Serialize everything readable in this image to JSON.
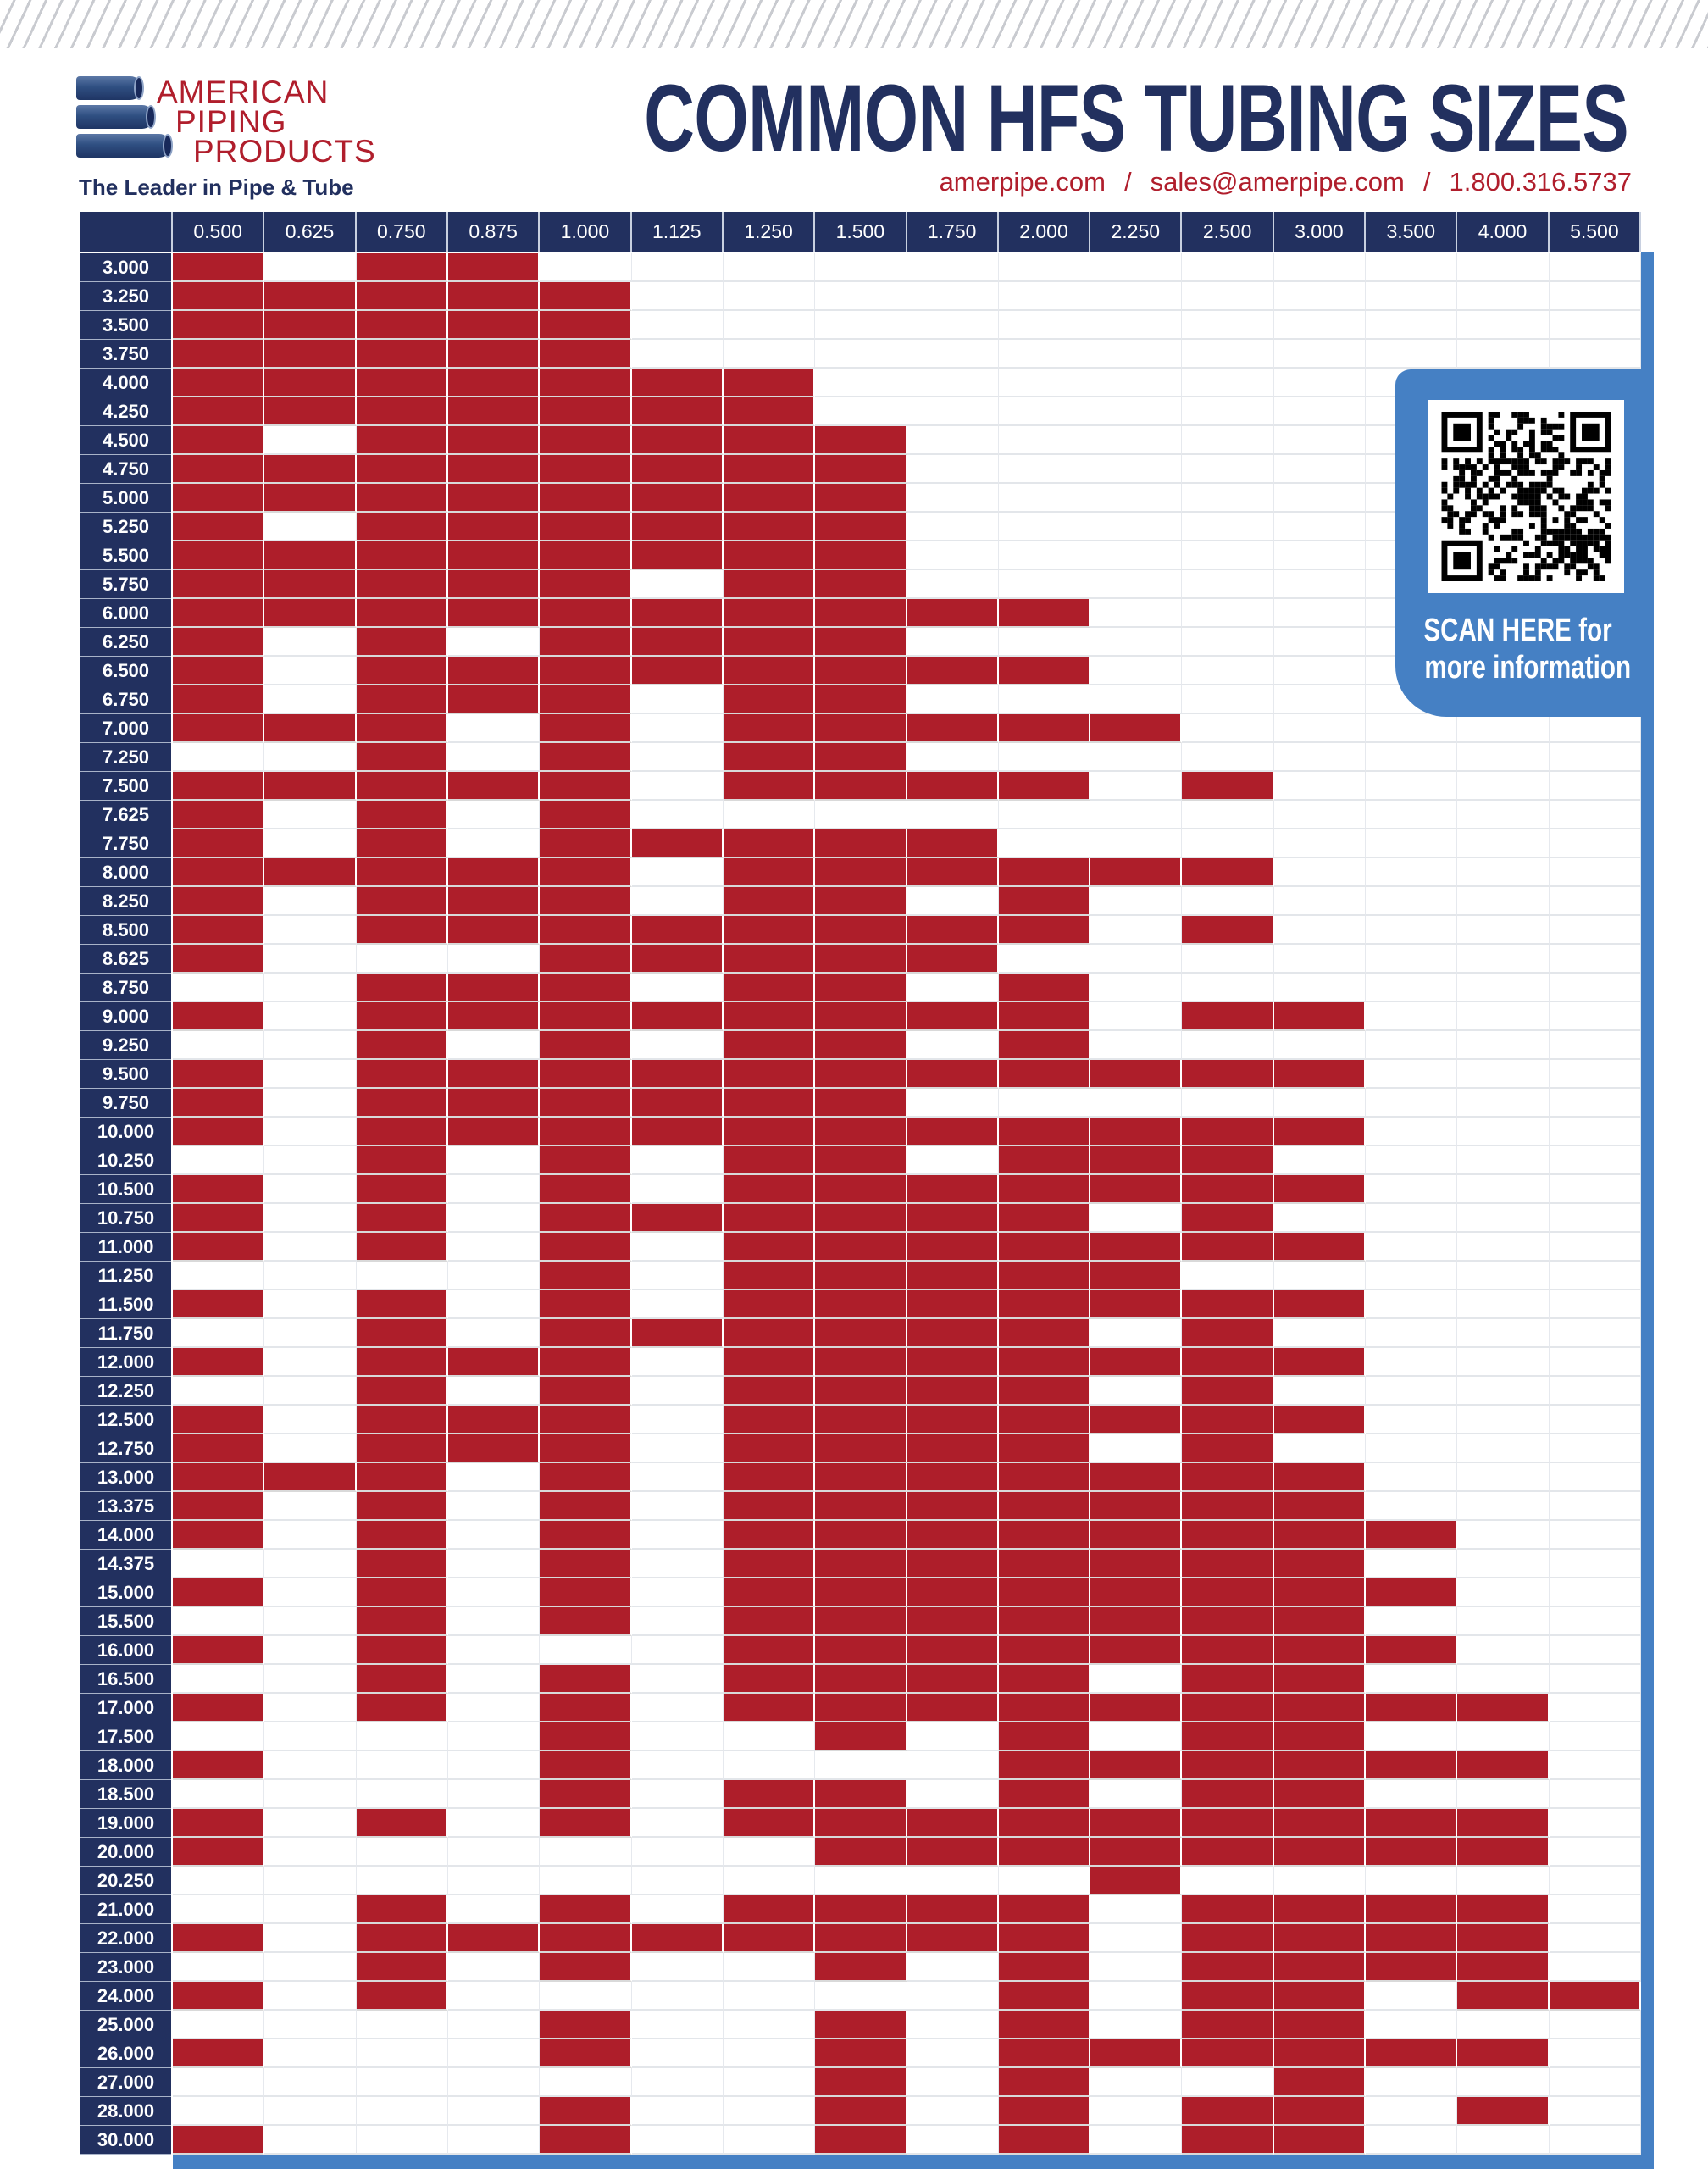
{
  "brand": {
    "logo_lines": [
      "AMERICAN",
      "PIPING",
      "PRODUCTS"
    ],
    "tagline": "The Leader in Pipe & Tube"
  },
  "header": {
    "title": "COMMON HFS TUBING SIZES",
    "website": "amerpipe.com",
    "separator": "/",
    "email": "sales@amerpipe.com",
    "phone": "1.800.316.5737"
  },
  "qr": {
    "icon": "qr-code-icon",
    "line1": "SCAN HERE for",
    "line2": "more information"
  },
  "colors": {
    "navy": "#22305f",
    "red": "#ae1e2a",
    "blue": "#4580c4"
  },
  "table": {
    "columns": [
      "0.500",
      "0.625",
      "0.750",
      "0.875",
      "1.000",
      "1.125",
      "1.250",
      "1.500",
      "1.750",
      "2.000",
      "2.250",
      "2.500",
      "3.000",
      "3.500",
      "4.000",
      "5.500"
    ],
    "rows": [
      {
        "size": "3.000",
        "avail": "1011000000000000"
      },
      {
        "size": "3.250",
        "avail": "1111100000000000"
      },
      {
        "size": "3.500",
        "avail": "1111100000000000"
      },
      {
        "size": "3.750",
        "avail": "1111100000000000"
      },
      {
        "size": "4.000",
        "avail": "1111111000000000"
      },
      {
        "size": "4.250",
        "avail": "1111111000000000"
      },
      {
        "size": "4.500",
        "avail": "1011111100000000"
      },
      {
        "size": "4.750",
        "avail": "1111111100000000"
      },
      {
        "size": "5.000",
        "avail": "1111111100000000"
      },
      {
        "size": "5.250",
        "avail": "1011111100000000"
      },
      {
        "size": "5.500",
        "avail": "1111111100000000"
      },
      {
        "size": "5.750",
        "avail": "1111101100000000"
      },
      {
        "size": "6.000",
        "avail": "1111111111000000"
      },
      {
        "size": "6.250",
        "avail": "1010111100000000"
      },
      {
        "size": "6.500",
        "avail": "1011111111000000"
      },
      {
        "size": "6.750",
        "avail": "1011101100000000"
      },
      {
        "size": "7.000",
        "avail": "1110101111100000"
      },
      {
        "size": "7.250",
        "avail": "0010101100000000"
      },
      {
        "size": "7.500",
        "avail": "1111101111010000"
      },
      {
        "size": "7.625",
        "avail": "1010100000000000"
      },
      {
        "size": "7.750",
        "avail": "1010111110000000"
      },
      {
        "size": "8.000",
        "avail": "1111101111110000"
      },
      {
        "size": "8.250",
        "avail": "1011101101000000"
      },
      {
        "size": "8.500",
        "avail": "1011111111010000"
      },
      {
        "size": "8.625",
        "avail": "1000111110000000"
      },
      {
        "size": "8.750",
        "avail": "0011101101000000"
      },
      {
        "size": "9.000",
        "avail": "1011111111011000"
      },
      {
        "size": "9.250",
        "avail": "0010101101000000"
      },
      {
        "size": "9.500",
        "avail": "1011111111111000"
      },
      {
        "size": "9.750",
        "avail": "1011111100000000"
      },
      {
        "size": "10.000",
        "avail": "1011111111111000"
      },
      {
        "size": "10.250",
        "avail": "0010101101110000"
      },
      {
        "size": "10.500",
        "avail": "1010101111111000"
      },
      {
        "size": "10.750",
        "avail": "1010111111010000"
      },
      {
        "size": "11.000",
        "avail": "1010101111111000"
      },
      {
        "size": "11.250",
        "avail": "0000101111100000"
      },
      {
        "size": "11.500",
        "avail": "1010101111111000"
      },
      {
        "size": "11.750",
        "avail": "0010111111010000"
      },
      {
        "size": "12.000",
        "avail": "1011101111111000"
      },
      {
        "size": "12.250",
        "avail": "0010101111010000"
      },
      {
        "size": "12.500",
        "avail": "1011101111111000"
      },
      {
        "size": "12.750",
        "avail": "1011101111010000"
      },
      {
        "size": "13.000",
        "avail": "1110101111111000"
      },
      {
        "size": "13.375",
        "avail": "1010101111111000"
      },
      {
        "size": "14.000",
        "avail": "1010101111111100"
      },
      {
        "size": "14.375",
        "avail": "0010101111111000"
      },
      {
        "size": "15.000",
        "avail": "1010101111111100"
      },
      {
        "size": "15.500",
        "avail": "0010101111111000"
      },
      {
        "size": "16.000",
        "avail": "1010001111111100"
      },
      {
        "size": "16.500",
        "avail": "0010101111011000"
      },
      {
        "size": "17.000",
        "avail": "1010101111111110"
      },
      {
        "size": "17.500",
        "avail": "0000100101011000"
      },
      {
        "size": "18.000",
        "avail": "1000100001111110"
      },
      {
        "size": "18.500",
        "avail": "0000101101011000"
      },
      {
        "size": "19.000",
        "avail": "1010101111111110"
      },
      {
        "size": "20.000",
        "avail": "1000000111111110"
      },
      {
        "size": "20.250",
        "avail": "0000000000100000"
      },
      {
        "size": "21.000",
        "avail": "0010101111011110"
      },
      {
        "size": "22.000",
        "avail": "1011111111011110"
      },
      {
        "size": "23.000",
        "avail": "0010100101011110"
      },
      {
        "size": "24.000",
        "avail": "1010000001011011"
      },
      {
        "size": "25.000",
        "avail": "0000100101011000"
      },
      {
        "size": "26.000",
        "avail": "1000100101111110"
      },
      {
        "size": "27.000",
        "avail": "0000000101001000"
      },
      {
        "size": "28.000",
        "avail": "0000100101011010"
      },
      {
        "size": "30.000",
        "avail": "1000100101011000"
      }
    ]
  }
}
